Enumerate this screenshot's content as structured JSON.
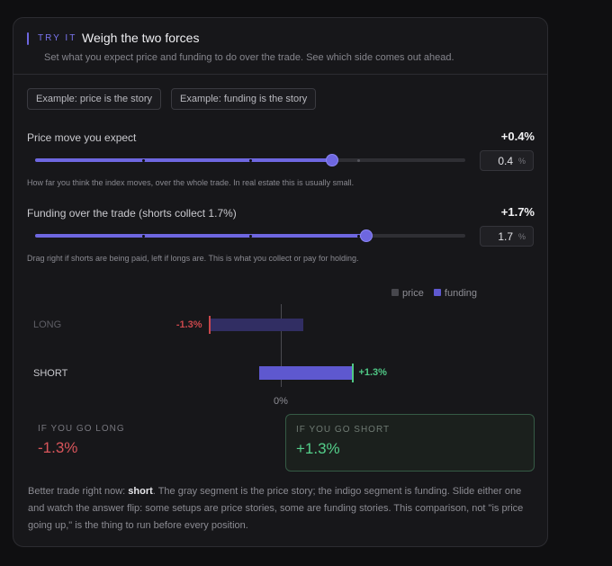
{
  "header": {
    "eyebrow": "TRY IT",
    "title": "Weigh the two forces",
    "subtitle": "Set what you expect price and funding to do over the trade. See which side comes out ahead."
  },
  "examples": [
    {
      "label": "Example: price is the story"
    },
    {
      "label": "Example: funding is the story"
    }
  ],
  "sliders": {
    "price": {
      "label": "Price move you expect",
      "display": "+0.4%",
      "input_value": "0.4",
      "unit": "%",
      "level": 0.69,
      "hint": "How far you think the index moves, over the whole trade. In real estate this is usually small."
    },
    "funding": {
      "label": "Funding over the trade (shorts collect 1.7%)",
      "display": "+1.7%",
      "input_value": "1.7",
      "unit": "%",
      "level": 0.77,
      "hint": "Drag right if shorts are being paid, left if longs are. This is what you collect or pay for holding."
    }
  },
  "chart_data": {
    "type": "bar",
    "orientation": "horizontal",
    "stacked": true,
    "categories": [
      "LONG",
      "SHORT"
    ],
    "series": [
      {
        "name": "price",
        "values": [
          0.4,
          -0.4
        ]
      },
      {
        "name": "funding",
        "values": [
          -1.7,
          1.7
        ]
      }
    ],
    "totals": [
      -1.3,
      1.3
    ],
    "total_labels": [
      "-1.3%",
      "+1.3%"
    ],
    "zero_label": "0%",
    "xlim": [
      -2.5,
      2.5
    ],
    "legend_position": "top-right",
    "colors": {
      "price": "#47474d",
      "funding": "#5e58cf",
      "funding_dim": "#312e63",
      "negative": "#c9474c",
      "positive": "#4fc785"
    }
  },
  "results": {
    "long": {
      "caption": "IF YOU GO LONG",
      "value": "-1.3%"
    },
    "short": {
      "caption": "IF YOU GO SHORT",
      "value": "+1.3%"
    }
  },
  "explanation": {
    "lead": "Better trade right now: ",
    "side": "short",
    "rest": ". The gray segment is the price story; the indigo segment is funding. Slide either one and watch the answer flip: some setups are price stories, some are funding stories. This comparison, not \"is price going up,\" is the thing to run before every position."
  }
}
